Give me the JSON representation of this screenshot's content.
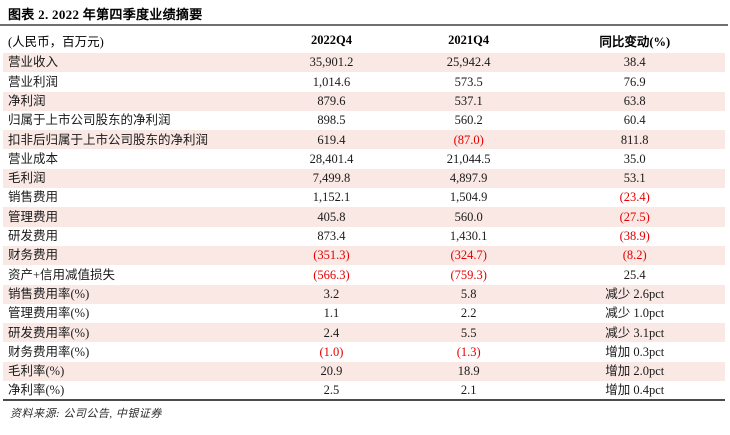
{
  "title": "图表 2. 2022 年第四季度业绩摘要",
  "colors": {
    "stripe_pink": "#f9e8e4",
    "negative_red": "#e60000",
    "title_rule_gray": "#6e6f72",
    "bottom_rule_dark": "#4b4b4d"
  },
  "table": {
    "columns": [
      "(人民币，百万元)",
      "2022Q4",
      "2021Q4",
      "同比变动(%)"
    ],
    "rows": [
      {
        "label": "营业收入",
        "v1": "35,901.2",
        "v2": "25,942.4",
        "v3": "38.4"
      },
      {
        "label": "营业利润",
        "v1": "1,014.6",
        "v2": "573.5",
        "v3": "76.9"
      },
      {
        "label": "净利润",
        "v1": "879.6",
        "v2": "537.1",
        "v3": "63.8"
      },
      {
        "label": "归属于上市公司股东的净利润",
        "v1": "898.5",
        "v2": "560.2",
        "v3": "60.4"
      },
      {
        "label": "扣非后归属于上市公司股东的净利润",
        "v1": "619.4",
        "v2": "(87.0)",
        "v3": "811.8"
      },
      {
        "label": "营业成本",
        "v1": "28,401.4",
        "v2": "21,044.5",
        "v3": "35.0"
      },
      {
        "label": "毛利润",
        "v1": "7,499.8",
        "v2": "4,897.9",
        "v3": "53.1"
      },
      {
        "label": "销售费用",
        "v1": "1,152.1",
        "v2": "1,504.9",
        "v3": "(23.4)"
      },
      {
        "label": "管理费用",
        "v1": "405.8",
        "v2": "560.0",
        "v3": "(27.5)"
      },
      {
        "label": "研发费用",
        "v1": "873.4",
        "v2": "1,430.1",
        "v3": "(38.9)"
      },
      {
        "label": "财务费用",
        "v1": "(351.3)",
        "v2": "(324.7)",
        "v3": "(8.2)"
      },
      {
        "label": "资产+信用减值损失",
        "v1": "(566.3)",
        "v2": "(759.3)",
        "v3": "25.4"
      },
      {
        "label": "销售费用率(%)",
        "v1": "3.2",
        "v2": "5.8",
        "v3": "减少 2.6pct"
      },
      {
        "label": "管理费用率(%)",
        "v1": "1.1",
        "v2": "2.2",
        "v3": "减少 1.0pct"
      },
      {
        "label": "研发费用率(%)",
        "v1": "2.4",
        "v2": "5.5",
        "v3": "减少 3.1pct"
      },
      {
        "label": "财务费用率(%)",
        "v1": "(1.0)",
        "v2": "(1.3)",
        "v3": "增加 0.3pct"
      },
      {
        "label": "毛利率(%)",
        "v1": "20.9",
        "v2": "18.9",
        "v3": "增加 2.0pct"
      },
      {
        "label": "净利率(%)",
        "v1": "2.5",
        "v2": "2.1",
        "v3": "增加 0.4pct"
      }
    ]
  },
  "footer": {
    "source": "资料来源: 公司公告, 中银证券"
  }
}
